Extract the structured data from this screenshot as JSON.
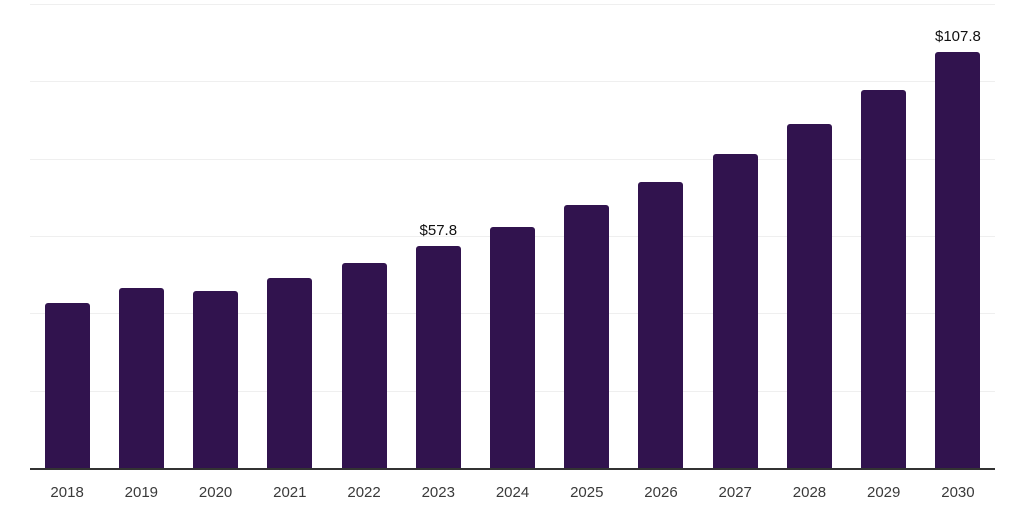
{
  "chart_data": {
    "type": "bar",
    "title": "",
    "xlabel": "",
    "ylabel": "",
    "categories": [
      "2018",
      "2019",
      "2020",
      "2021",
      "2022",
      "2023",
      "2024",
      "2025",
      "2026",
      "2027",
      "2028",
      "2029",
      "2030"
    ],
    "values": [
      42.9,
      46.7,
      46.0,
      49.4,
      53.3,
      57.8,
      62.6,
      68.2,
      74.2,
      81.4,
      89.3,
      98.1,
      107.8
    ],
    "value_labels": [
      null,
      null,
      null,
      null,
      null,
      "$57.8",
      null,
      null,
      null,
      null,
      null,
      null,
      "$107.8"
    ],
    "ylim": [
      0,
      120
    ],
    "grid_step": 20,
    "grid": true,
    "legend": false,
    "y_tick_labels_visible": false,
    "colors": {
      "bar": "#31134E",
      "gridline": "#EFEFEF",
      "axis_line": "#333333",
      "x_label": "#3A3A3A",
      "value_label": "#111111",
      "background": "#FFFFFF"
    }
  }
}
